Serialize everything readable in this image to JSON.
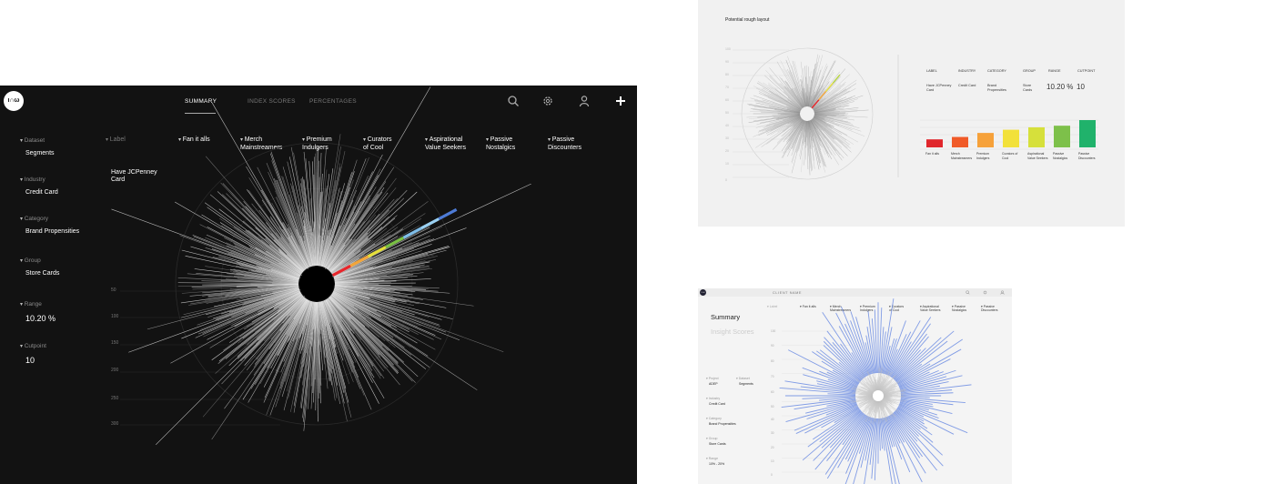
{
  "dark_app": {
    "logo_text": "ι∩ω",
    "nav": [
      "SUMMARY",
      "INDEX SCORES",
      "PERCENTAGES"
    ],
    "active_nav": "SUMMARY",
    "icons": [
      "search-icon",
      "gear-icon",
      "user-icon",
      "plus-icon"
    ],
    "filters": [
      {
        "label": "Dataset",
        "value": "Segments"
      },
      {
        "label": "Industry",
        "value": "Credit Card"
      },
      {
        "label": "Category",
        "value": "Brand Propensities"
      },
      {
        "label": "Group",
        "value": "Store Cards"
      },
      {
        "label": "Range",
        "value": "10.20 %"
      },
      {
        "label": "Cutpoint",
        "value": "10"
      }
    ],
    "segment_label_header": "Label",
    "label_value": "Have JCPenney\nCard",
    "segments": [
      "Fan it alls",
      "Merch\nMainstreamers",
      "Premium\nIndulgers",
      "Curators\nof Cool",
      "Aspirational\nValue Seekers",
      "Passive\nNostalgics",
      "Passive\nDiscounters"
    ],
    "radial_ticks": [
      "50",
      "100",
      "150",
      "200",
      "250",
      "300"
    ],
    "highlight_colors": [
      "#e8262b",
      "#f2a53a",
      "#e6e03a",
      "#7ac144",
      "#7fbde8",
      "#9bd1f2",
      "#4d7bd6"
    ]
  },
  "layout_preview": {
    "title": "Potential rough layout",
    "headers": [
      "LABEL",
      "INDUSTRY",
      "CATEGORY",
      "GROUP",
      "RANGE",
      "CUTPOINT"
    ],
    "values": [
      "Have JCPenney\nCard",
      "Credit Card",
      "Brand\nPropensities",
      "Store\nCards",
      "10.20 %",
      "10"
    ],
    "bars": [
      {
        "label": "Fan it alls",
        "value": 10,
        "color": "#e0262b"
      },
      {
        "label": "Merch\nMainstreamers",
        "value": 13,
        "color": "#f05a28"
      },
      {
        "label": "Premium\nIndulgers",
        "value": 18,
        "color": "#f6a13a"
      },
      {
        "label": "Curators of\nCool",
        "value": 22,
        "color": "#f2e13a"
      },
      {
        "label": "Aspirational\nValue Seekers",
        "value": 25,
        "color": "#d6e03b"
      },
      {
        "label": "Passive\nNostalgics",
        "value": 27,
        "color": "#7dc04a"
      },
      {
        "label": "Passive\nDiscounters",
        "value": 34,
        "color": "#20b26b"
      }
    ],
    "radial_ticks": [
      "100",
      "90",
      "80",
      "70",
      "60",
      "50",
      "40",
      "30",
      "20",
      "10",
      "0"
    ]
  },
  "client_app": {
    "logo_text": "ι∩ω",
    "client_name": "CLIENT NAME",
    "title": "Summary",
    "subtitle": "Insight Scores",
    "label_header": "Label",
    "segments": [
      "Fan it alls",
      "Merch\nMainstreamers",
      "Premium\nIndulgers",
      "Curators\nof Cool",
      "Aspirational\nValue Seekers",
      "Passive\nNostalgics",
      "Passive\nDiscounters"
    ],
    "filters": [
      {
        "label": "Project",
        "value": "ADEP"
      },
      {
        "label": "Dataset",
        "value": "Segments"
      },
      {
        "label": "Industry",
        "value": "Credit Card"
      },
      {
        "label": "Category",
        "value": "Brand Propensities"
      },
      {
        "label": "Group",
        "value": "Store Cards"
      },
      {
        "label": "Range",
        "value": "10% - 20%"
      }
    ],
    "radial_ticks": [
      "100",
      "90",
      "80",
      "70",
      "60",
      "50",
      "40",
      "30",
      "20",
      "10",
      "0"
    ],
    "spike_color": "#5b7fe0"
  }
}
